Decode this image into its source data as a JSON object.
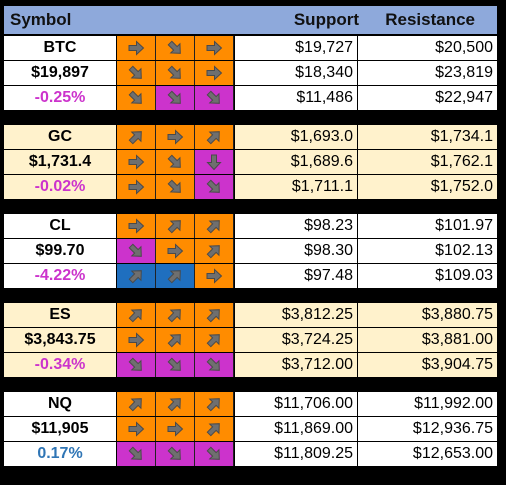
{
  "colors": {
    "header_bg": "#8EA9DB",
    "row_white": "#FFFFFF",
    "row_cream": "#FFF2CC",
    "arrow_orange": "#FF8C00",
    "arrow_magenta": "#CC33CC",
    "arrow_blue": "#1F6FBF",
    "pct_negative": "#CC33CC",
    "pct_positive": "#2F75B5"
  },
  "header": {
    "symbol_label": "Symbol",
    "support_label": "Support",
    "resistance_label": "Resistance"
  },
  "blocks": [
    {
      "symbol": "BTC",
      "price": "$19,897",
      "change": "-0.25%",
      "change_sign": "negative",
      "row_bg": "white",
      "rows": [
        {
          "arrows": [
            {
              "dir": "right",
              "bg": "orange"
            },
            {
              "dir": "down-right",
              "bg": "orange"
            },
            {
              "dir": "right",
              "bg": "orange"
            }
          ],
          "support": "$19,727",
          "resistance": "$20,500"
        },
        {
          "arrows": [
            {
              "dir": "down-right",
              "bg": "orange"
            },
            {
              "dir": "down-right",
              "bg": "orange"
            },
            {
              "dir": "right",
              "bg": "orange"
            }
          ],
          "support": "$18,340",
          "resistance": "$23,819"
        },
        {
          "arrows": [
            {
              "dir": "down-right",
              "bg": "orange"
            },
            {
              "dir": "down-right",
              "bg": "magenta"
            },
            {
              "dir": "down-right",
              "bg": "magenta"
            }
          ],
          "support": "$11,486",
          "resistance": "$22,947"
        }
      ]
    },
    {
      "symbol": "GC",
      "price": "$1,731.4",
      "change": "-0.02%",
      "change_sign": "negative",
      "row_bg": "cream",
      "rows": [
        {
          "arrows": [
            {
              "dir": "up-right",
              "bg": "orange"
            },
            {
              "dir": "right",
              "bg": "orange"
            },
            {
              "dir": "up-right",
              "bg": "orange"
            }
          ],
          "support": "$1,693.0",
          "resistance": "$1,734.1"
        },
        {
          "arrows": [
            {
              "dir": "right",
              "bg": "orange"
            },
            {
              "dir": "down-right",
              "bg": "orange"
            },
            {
              "dir": "down",
              "bg": "magenta"
            }
          ],
          "support": "$1,689.6",
          "resistance": "$1,762.1"
        },
        {
          "arrows": [
            {
              "dir": "right",
              "bg": "orange"
            },
            {
              "dir": "down-right",
              "bg": "orange"
            },
            {
              "dir": "down-right",
              "bg": "magenta"
            }
          ],
          "support": "$1,711.1",
          "resistance": "$1,752.0"
        }
      ]
    },
    {
      "symbol": "CL",
      "price": "$99.70",
      "change": "-4.22%",
      "change_sign": "negative",
      "row_bg": "white",
      "rows": [
        {
          "arrows": [
            {
              "dir": "right",
              "bg": "orange"
            },
            {
              "dir": "up-right",
              "bg": "orange"
            },
            {
              "dir": "up-right",
              "bg": "orange"
            }
          ],
          "support": "$98.23",
          "resistance": "$101.97"
        },
        {
          "arrows": [
            {
              "dir": "down-right",
              "bg": "magenta"
            },
            {
              "dir": "right",
              "bg": "orange"
            },
            {
              "dir": "up-right",
              "bg": "orange"
            }
          ],
          "support": "$98.30",
          "resistance": "$102.13"
        },
        {
          "arrows": [
            {
              "dir": "up-right",
              "bg": "blue"
            },
            {
              "dir": "up-right",
              "bg": "blue"
            },
            {
              "dir": "right",
              "bg": "orange"
            }
          ],
          "support": "$97.48",
          "resistance": "$109.03"
        }
      ]
    },
    {
      "symbol": "ES",
      "price": "$3,843.75",
      "change": "-0.34%",
      "change_sign": "negative",
      "row_bg": "cream",
      "rows": [
        {
          "arrows": [
            {
              "dir": "up-right",
              "bg": "orange"
            },
            {
              "dir": "up-right",
              "bg": "orange"
            },
            {
              "dir": "up-right",
              "bg": "orange"
            }
          ],
          "support": "$3,812.25",
          "resistance": "$3,880.75"
        },
        {
          "arrows": [
            {
              "dir": "right",
              "bg": "orange"
            },
            {
              "dir": "up-right",
              "bg": "orange"
            },
            {
              "dir": "up-right",
              "bg": "orange"
            }
          ],
          "support": "$3,724.25",
          "resistance": "$3,881.00"
        },
        {
          "arrows": [
            {
              "dir": "down-right",
              "bg": "magenta"
            },
            {
              "dir": "down-right",
              "bg": "magenta"
            },
            {
              "dir": "down-right",
              "bg": "magenta"
            }
          ],
          "support": "$3,712.00",
          "resistance": "$3,904.75"
        }
      ]
    },
    {
      "symbol": "NQ",
      "price": "$11,905",
      "change": "0.17%",
      "change_sign": "positive",
      "row_bg": "white",
      "rows": [
        {
          "arrows": [
            {
              "dir": "up-right",
              "bg": "orange"
            },
            {
              "dir": "up-right",
              "bg": "orange"
            },
            {
              "dir": "up-right",
              "bg": "orange"
            }
          ],
          "support": "$11,706.00",
          "resistance": "$11,992.00"
        },
        {
          "arrows": [
            {
              "dir": "right",
              "bg": "orange"
            },
            {
              "dir": "right",
              "bg": "orange"
            },
            {
              "dir": "up-right",
              "bg": "orange"
            }
          ],
          "support": "$11,869.00",
          "resistance": "$12,936.75"
        },
        {
          "arrows": [
            {
              "dir": "down-right",
              "bg": "magenta"
            },
            {
              "dir": "down-right",
              "bg": "magenta"
            },
            {
              "dir": "down-right",
              "bg": "magenta"
            }
          ],
          "support": "$11,809.25",
          "resistance": "$12,653.00"
        }
      ]
    }
  ]
}
